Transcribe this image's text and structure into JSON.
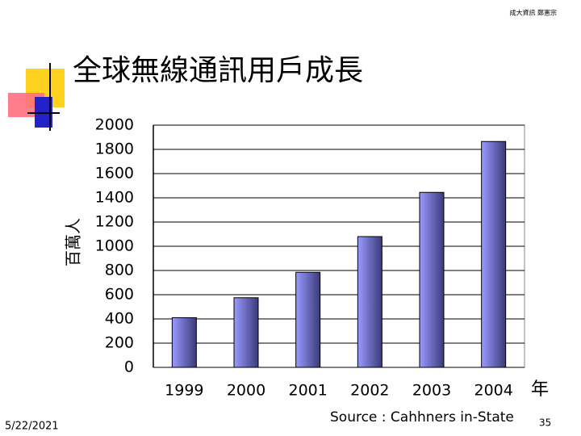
{
  "slide": {
    "header": "成大資訊 鄭憲宗",
    "date": "5/22/2021",
    "page": "35"
  },
  "chart_data": {
    "type": "bar",
    "title": "全球無線通訊用戶成長",
    "y_label": "百萬人",
    "x_label": "年",
    "source": "Source : Cahhners in-State",
    "categories": [
      "1999",
      "2000",
      "2001",
      "2002",
      "2003",
      "2004"
    ],
    "values": [
      410,
      575,
      785,
      1080,
      1445,
      1865
    ],
    "color": "#9a9aff",
    "ylim": [
      0,
      2000
    ],
    "yticks": [
      0,
      200,
      400,
      600,
      800,
      1000,
      1200,
      1400,
      1600,
      1800,
      2000
    ],
    "grid": true
  }
}
